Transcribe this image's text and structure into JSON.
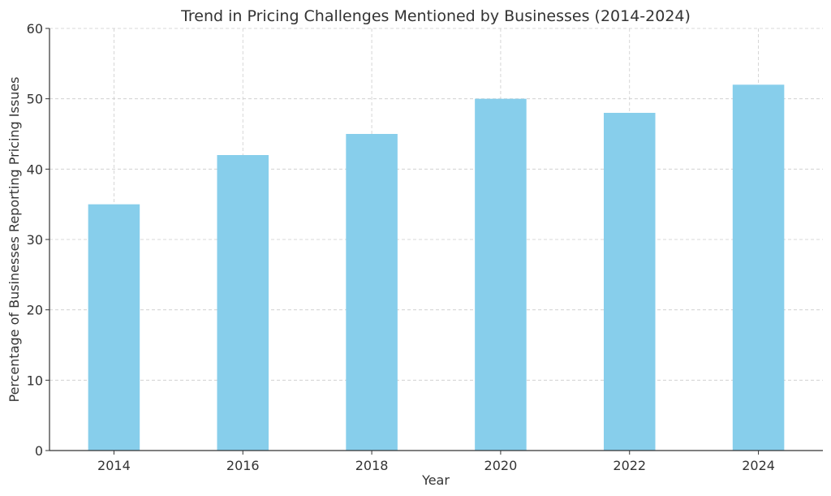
{
  "chart_data": {
    "type": "bar",
    "title": "Trend in Pricing Challenges Mentioned by Businesses (2014-2024)",
    "xlabel": "Year",
    "ylabel": "Percentage of Businesses Reporting Pricing Issues",
    "categories": [
      "2014",
      "2016",
      "2018",
      "2020",
      "2022",
      "2024"
    ],
    "values": [
      35,
      42,
      45,
      50,
      48,
      52
    ],
    "ylim": [
      0,
      60
    ],
    "yticks": [
      0,
      10,
      20,
      30,
      40,
      50,
      60
    ],
    "grid": true,
    "bar_color": "#87CEEB"
  }
}
